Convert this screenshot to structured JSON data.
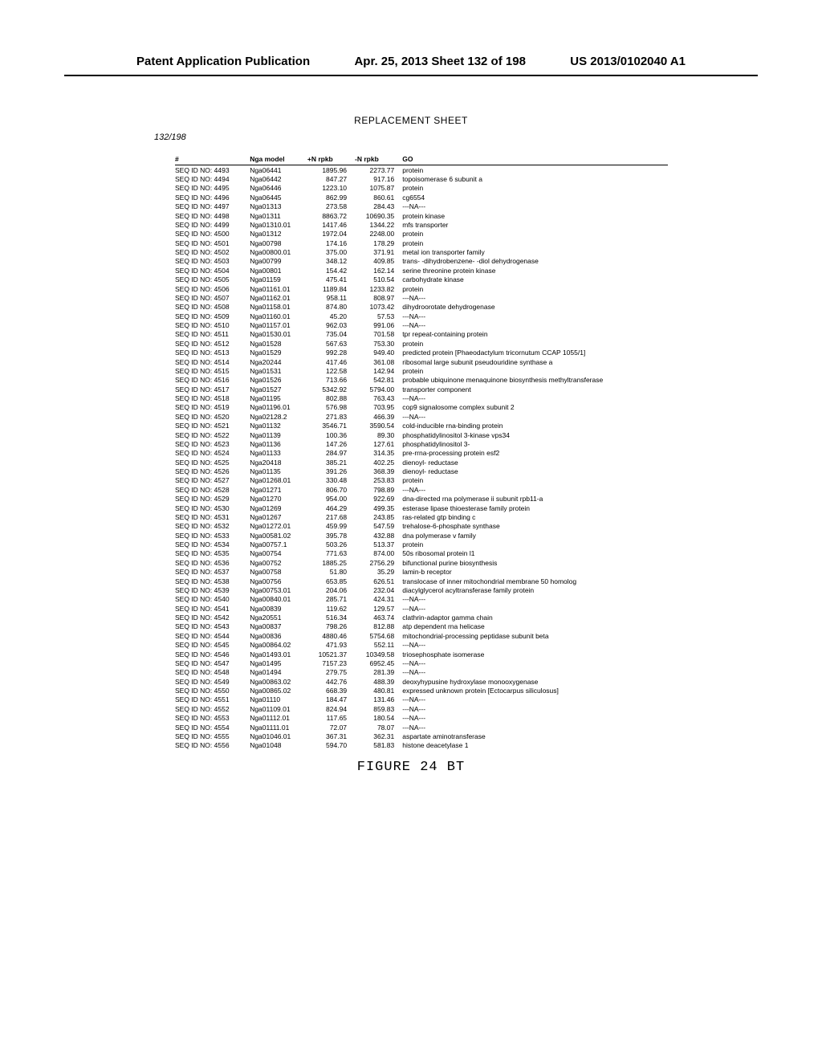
{
  "header": {
    "left": "Patent Application Publication",
    "center": "Apr. 25, 2013  Sheet 132 of 198",
    "right": "US 2013/0102040 A1"
  },
  "replacement": "REPLACEMENT SHEET",
  "sheet": "132/198",
  "figure": "FIGURE 24 BT",
  "columns": [
    "#",
    "Nga model",
    "+N rpkb",
    "-N rpkb",
    "GO"
  ],
  "rows": [
    [
      "SEQ ID NO: 4493",
      "Nga06441",
      "1895.96",
      "2273.77",
      "protein"
    ],
    [
      "SEQ ID NO: 4494",
      "Nga06442",
      "847.27",
      "917.16",
      "topoisomerase 6 subunit a"
    ],
    [
      "SEQ ID NO: 4495",
      "Nga06446",
      "1223.10",
      "1075.87",
      "protein"
    ],
    [
      "SEQ ID NO: 4496",
      "Nga06445",
      "862.99",
      "860.61",
      "cg6554"
    ],
    [
      "SEQ ID NO: 4497",
      "Nga01313",
      "273.58",
      "284.43",
      "---NA---"
    ],
    [
      "SEQ ID NO: 4498",
      "Nga01311",
      "8863.72",
      "10690.35",
      "protein kinase"
    ],
    [
      "SEQ ID NO: 4499",
      "Nga01310.01",
      "1417.46",
      "1344.22",
      "mfs transporter"
    ],
    [
      "SEQ ID NO: 4500",
      "Nga01312",
      "1972.04",
      "2248.00",
      "protein"
    ],
    [
      "SEQ ID NO: 4501",
      "Nga00798",
      "174.16",
      "178.29",
      "protein"
    ],
    [
      "SEQ ID NO: 4502",
      "Nga00800.01",
      "375.00",
      "371.91",
      "metal ion transporter family"
    ],
    [
      "SEQ ID NO: 4503",
      "Nga00799",
      "348.12",
      "409.85",
      "trans- -dihydrobenzene- -diol dehydrogenase"
    ],
    [
      "SEQ ID NO: 4504",
      "Nga00801",
      "154.42",
      "162.14",
      "serine threonine protein kinase"
    ],
    [
      "SEQ ID NO: 4505",
      "Nga01159",
      "475.41",
      "510.54",
      "carbohydrate kinase"
    ],
    [
      "SEQ ID NO: 4506",
      "Nga01161.01",
      "1189.84",
      "1233.82",
      "protein"
    ],
    [
      "SEQ ID NO: 4507",
      "Nga01162.01",
      "958.11",
      "808.97",
      "---NA---"
    ],
    [
      "SEQ ID NO: 4508",
      "Nga01158.01",
      "874.80",
      "1073.42",
      "dihydroorotate dehydrogenase"
    ],
    [
      "SEQ ID NO: 4509",
      "Nga01160.01",
      "45.20",
      "57.53",
      "---NA---"
    ],
    [
      "SEQ ID NO: 4510",
      "Nga01157.01",
      "962.03",
      "991.06",
      "---NA---"
    ],
    [
      "SEQ ID NO: 4511",
      "Nga01530.01",
      "735.04",
      "701.58",
      "tpr repeat-containing protein"
    ],
    [
      "SEQ ID NO: 4512",
      "Nga01528",
      "567.63",
      "753.30",
      "protein"
    ],
    [
      "SEQ ID NO: 4513",
      "Nga01529",
      "992.28",
      "949.40",
      "predicted protein [Phaeodactylum tricornutum CCAP 1055/1]"
    ],
    [
      "SEQ ID NO: 4514",
      "Nga20244",
      "417.46",
      "361.08",
      "ribosomal large subunit pseudouridine synthase a"
    ],
    [
      "SEQ ID NO: 4515",
      "Nga01531",
      "122.58",
      "142.94",
      "protein"
    ],
    [
      "SEQ ID NO: 4516",
      "Nga01526",
      "713.66",
      "542.81",
      "probable ubiquinone menaquinone biosynthesis methyltransferase"
    ],
    [
      "SEQ ID NO: 4517",
      "Nga01527",
      "5342.92",
      "5794.00",
      "transporter component"
    ],
    [
      "SEQ ID NO: 4518",
      "Nga01195",
      "802.88",
      "763.43",
      "---NA---"
    ],
    [
      "SEQ ID NO: 4519",
      "Nga01196.01",
      "576.98",
      "703.95",
      "cop9 signalosome complex subunit 2"
    ],
    [
      "SEQ ID NO: 4520",
      "Nga02128.2",
      "271.83",
      "466.39",
      "---NA---"
    ],
    [
      "SEQ ID NO: 4521",
      "Nga01132",
      "3546.71",
      "3590.54",
      "cold-inducible rna-binding protein"
    ],
    [
      "SEQ ID NO: 4522",
      "Nga01139",
      "100.36",
      "89.30",
      "phosphatidylinositol 3-kinase vps34"
    ],
    [
      "SEQ ID NO: 4523",
      "Nga01136",
      "147.26",
      "127.61",
      "phosphatidylinositol 3-"
    ],
    [
      "SEQ ID NO: 4524",
      "Nga01133",
      "284.97",
      "314.35",
      "pre-rrna-processing protein esf2"
    ],
    [
      "SEQ ID NO: 4525",
      "Nga20418",
      "385.21",
      "402.25",
      "dienoyl- reductase"
    ],
    [
      "SEQ ID NO: 4526",
      "Nga01135",
      "391.26",
      "368.39",
      "dienoyl- reductase"
    ],
    [
      "SEQ ID NO: 4527",
      "Nga01268.01",
      "330.48",
      "253.83",
      "protein"
    ],
    [
      "SEQ ID NO: 4528",
      "Nga01271",
      "806.70",
      "798.89",
      "---NA---"
    ],
    [
      "SEQ ID NO: 4529",
      "Nga01270",
      "954.00",
      "922.69",
      "dna-directed rna polymerase ii subunit rpb11-a"
    ],
    [
      "SEQ ID NO: 4530",
      "Nga01269",
      "464.29",
      "499.35",
      "esterase lipase thioesterase family protein"
    ],
    [
      "SEQ ID NO: 4531",
      "Nga01267",
      "217.68",
      "243.85",
      "ras-related gtp binding c"
    ],
    [
      "SEQ ID NO: 4532",
      "Nga01272.01",
      "459.99",
      "547.59",
      "trehalose-6-phosphate synthase"
    ],
    [
      "SEQ ID NO: 4533",
      "Nga00581.02",
      "395.78",
      "432.88",
      "dna polymerase v family"
    ],
    [
      "SEQ ID NO: 4534",
      "Nga00757.1",
      "503.26",
      "513.37",
      "protein"
    ],
    [
      "SEQ ID NO: 4535",
      "Nga00754",
      "771.63",
      "874.00",
      "50s ribosomal protein l1"
    ],
    [
      "SEQ ID NO: 4536",
      "Nga00752",
      "1885.25",
      "2756.29",
      "bifunctional purine biosynthesis"
    ],
    [
      "SEQ ID NO: 4537",
      "Nga00758",
      "51.80",
      "35.29",
      "lamin-b receptor"
    ],
    [
      "SEQ ID NO: 4538",
      "Nga00756",
      "653.85",
      "626.51",
      "translocase of inner mitochondrial membrane 50 homolog"
    ],
    [
      "SEQ ID NO: 4539",
      "Nga00753.01",
      "204.06",
      "232.04",
      "diacylglycerol acyltransferase family protein"
    ],
    [
      "SEQ ID NO: 4540",
      "Nga00840.01",
      "285.71",
      "424.31",
      "---NA---"
    ],
    [
      "SEQ ID NO: 4541",
      "Nga00839",
      "119.62",
      "129.57",
      "---NA---"
    ],
    [
      "SEQ ID NO: 4542",
      "Nga20551",
      "516.34",
      "463.74",
      "clathrin-adaptor gamma chain"
    ],
    [
      "SEQ ID NO: 4543",
      "Nga00837",
      "798.26",
      "812.88",
      "atp dependent rna helicase"
    ],
    [
      "SEQ ID NO: 4544",
      "Nga00836",
      "4880.46",
      "5754.68",
      "mitochondrial-processing peptidase subunit beta"
    ],
    [
      "SEQ ID NO: 4545",
      "Nga00864.02",
      "471.93",
      "552.11",
      "---NA---"
    ],
    [
      "SEQ ID NO: 4546",
      "Nga01493.01",
      "10521.37",
      "10349.58",
      "triosephosphate isomerase"
    ],
    [
      "SEQ ID NO: 4547",
      "Nga01495",
      "7157.23",
      "6952.45",
      "---NA---"
    ],
    [
      "SEQ ID NO: 4548",
      "Nga01494",
      "279.75",
      "281.39",
      "---NA---"
    ],
    [
      "SEQ ID NO: 4549",
      "Nga00863.02",
      "442.76",
      "488.39",
      "deoxyhypusine hydroxylase monooxygenase"
    ],
    [
      "SEQ ID NO: 4550",
      "Nga00865.02",
      "668.39",
      "480.81",
      "expressed unknown protein [Ectocarpus siliculosus]"
    ],
    [
      "SEQ ID NO: 4551",
      "Nga01110",
      "184.47",
      "131.46",
      "---NA---"
    ],
    [
      "SEQ ID NO: 4552",
      "Nga01109.01",
      "824.94",
      "859.83",
      "---NA---"
    ],
    [
      "SEQ ID NO: 4553",
      "Nga01112.01",
      "117.65",
      "180.54",
      "---NA---"
    ],
    [
      "SEQ ID NO: 4554",
      "Nga01111.01",
      "72.07",
      "78.07",
      "---NA---"
    ],
    [
      "SEQ ID NO: 4555",
      "Nga01046.01",
      "367.31",
      "362.31",
      "aspartate aminotransferase"
    ],
    [
      "SEQ ID NO: 4556",
      "Nga01048",
      "594.70",
      "581.83",
      "histone deacetylase 1"
    ]
  ]
}
